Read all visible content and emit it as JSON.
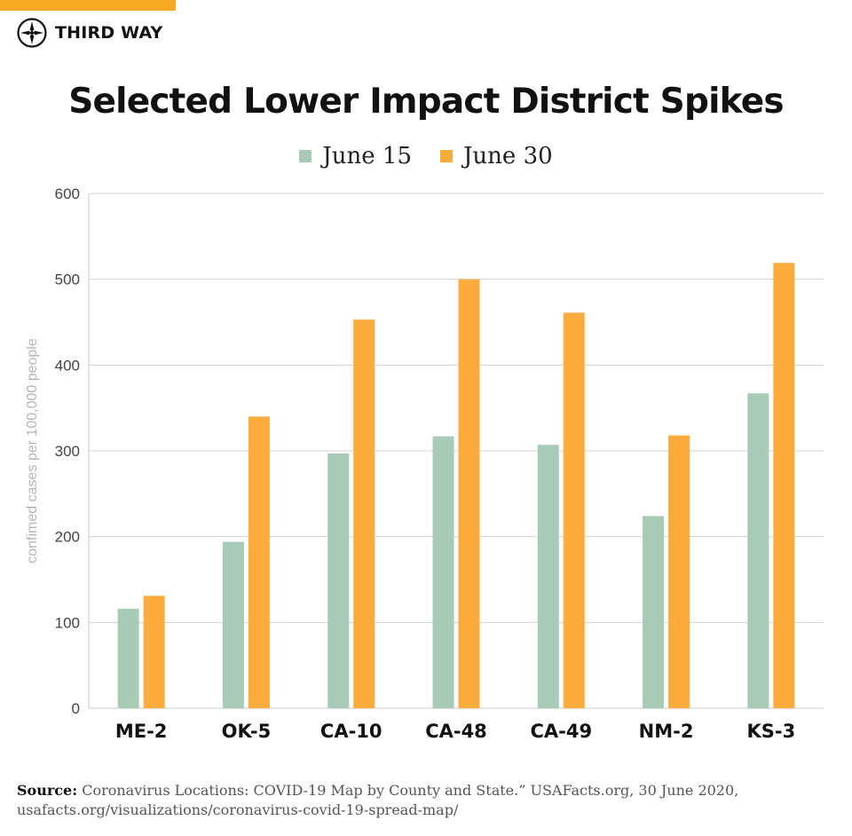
{
  "brand": {
    "name": "THIRD WAY",
    "accent_color": "#f7a823",
    "logo_icon": "compass-icon"
  },
  "chart_data": {
    "type": "bar",
    "title": "Selected Lower Impact District Spikes",
    "ylabel": "confimed cases per 100,000 people",
    "xlabel": "",
    "categories": [
      "ME-2",
      "OK-5",
      "CA-10",
      "CA-48",
      "CA-49",
      "NM-2",
      "KS-3"
    ],
    "series": [
      {
        "name": "June 15",
        "color": "#a8cbb7",
        "values": [
          116,
          194,
          297,
          317,
          307,
          224,
          367
        ]
      },
      {
        "name": "June 30",
        "color": "#fbac3c",
        "values": [
          131,
          340,
          453,
          500,
          461,
          318,
          519
        ]
      }
    ],
    "ylim": [
      0,
      600
    ],
    "yticks": [
      "0",
      "100",
      "200",
      "300",
      "400",
      "500",
      "600"
    ],
    "grid": true,
    "legend_position": "top"
  },
  "source": {
    "label": "Source:",
    "text": " Coronavirus Locations: COVID-19 Map by County and State.” USAFacts.org, 30 June 2020, usafacts.org/visualizations/coronavirus-covid-19-spread-map/"
  }
}
